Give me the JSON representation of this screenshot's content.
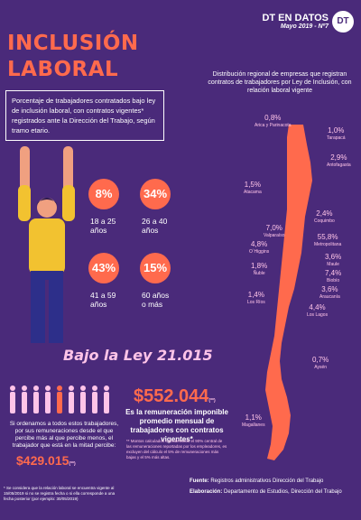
{
  "title_line1": "INCLUSIÓN",
  "title_line2": "LABORAL",
  "brand": {
    "name": "DT EN DATOS",
    "issue": "Mayo 2019 - Nº7",
    "logo": "DT"
  },
  "description": "Porcentaje de trabajadores contratados bajo ley de inclusión laboral, con contratos vigentes* registrados ante la Dirección del Trabajo, según tramo etario.",
  "age_groups": [
    {
      "pct": "8%",
      "line1": "18 a 25",
      "line2": "años"
    },
    {
      "pct": "34%",
      "line1": "26 a 40",
      "line2": "años"
    },
    {
      "pct": "43%",
      "line1": "41 a 59",
      "line2": "años"
    },
    {
      "pct": "15%",
      "line1": "60 años",
      "line2": "o más"
    }
  ],
  "law_title": "Bajo la Ley 21.015",
  "median": {
    "text": "Si ordenamos a todos estos trabajadores, por sus remuneraciones desde el que percibe más al que percibe menos, el trabajador que está en la mitad percibe:",
    "value": "$429.015",
    "sup": "(**)"
  },
  "average": {
    "value": "$552.044",
    "sup": "(**)",
    "text": "Es la remuneración imponible promedio mensual de trabajadores con contratos vigentes*"
  },
  "average_note": "** Montos calculados considerando el 90% central de las remuneraciones reportadas por los empleadores, es excluyen del cálculo el 5% de remuneraciones más bajas y el 5% más altas.",
  "footnote": "* Se considera que la relación laboral se encuentra vigente al 15/05/2019 si no se registra fecha o si ella corresponde a una fecha posterior (por ejemplo: 30/05/2019)",
  "map_title": "Distribución regional de empresas que registran contratos de trabajadores por Ley de Inclusión, con relación laboral vigente",
  "regions": [
    {
      "pct": "0,8%",
      "name": "Arica y Parinacota"
    },
    {
      "pct": "1,0%",
      "name": "Tarapacá"
    },
    {
      "pct": "2,9%",
      "name": "Antofagasta"
    },
    {
      "pct": "1,5%",
      "name": "Atacama"
    },
    {
      "pct": "2,4%",
      "name": "Coquimbo"
    },
    {
      "pct": "7,0%",
      "name": "Valparaíso"
    },
    {
      "pct": "55,8%",
      "name": "Metropolitana"
    },
    {
      "pct": "4,8%",
      "name": "O´Higgins"
    },
    {
      "pct": "3,6%",
      "name": "Maule"
    },
    {
      "pct": "1,8%",
      "name": "Ñuble"
    },
    {
      "pct": "7,4%",
      "name": "Biobío"
    },
    {
      "pct": "3,6%",
      "name": "Araucanía"
    },
    {
      "pct": "1,4%",
      "name": "Los Ríos"
    },
    {
      "pct": "4,4%",
      "name": "Los Lagos"
    },
    {
      "pct": "0,7%",
      "name": "Aysén"
    },
    {
      "pct": "1,1%",
      "name": "Magallanes"
    }
  ],
  "source": {
    "label": "Fuente:",
    "text": "Registros administrativos Dirección del Trabajo"
  },
  "elaboration": {
    "label": "Elaboración:",
    "text": "Departamento de Estudios, Dirección del Trabajo"
  },
  "colors": {
    "background": "#4a2a7a",
    "accent": "#ff6a4d",
    "pink": "#ffc4e8",
    "map": "#ff6a4d"
  }
}
